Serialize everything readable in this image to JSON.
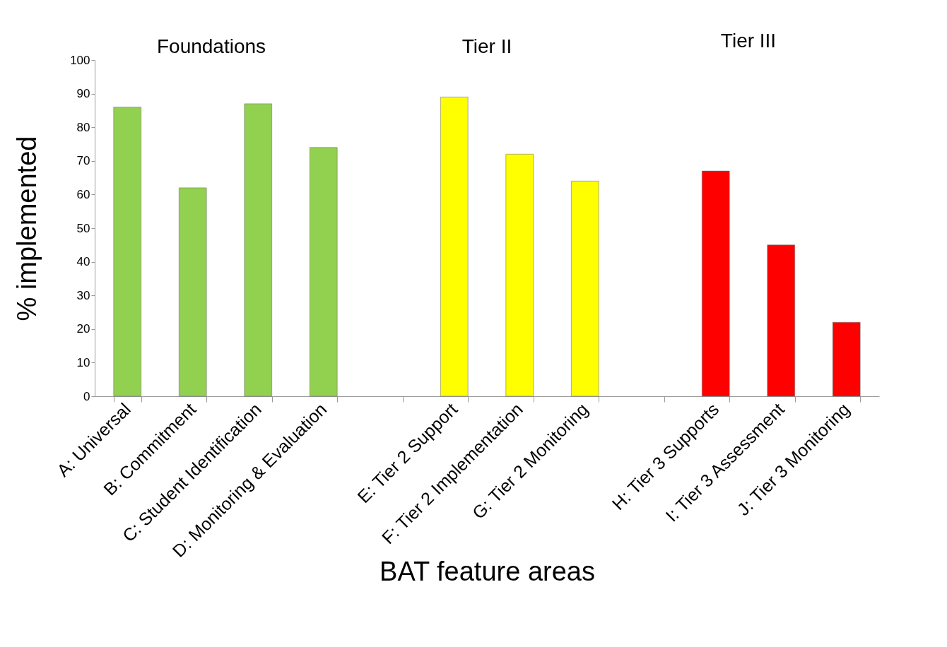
{
  "chart_data": {
    "type": "bar",
    "xlabel": "BAT feature areas",
    "ylabel": "% implemented",
    "categories": [
      "A: Universal",
      "B: Commitment",
      "C: Student Identification",
      "D: Monitoring & Evaluation",
      null,
      "E: Tier 2 Support",
      "F: Tier 2 Implementation",
      "G: Tier 2 Monitoring",
      null,
      "H: Tier 3 Supports",
      "I: Tier 3 Assessment",
      "J: Tier 3 Monitoring"
    ],
    "values": [
      86,
      62,
      87,
      74,
      null,
      89,
      72,
      64,
      null,
      67,
      45,
      22
    ],
    "colors": [
      "#92d050",
      "#92d050",
      "#92d050",
      "#92d050",
      null,
      "#ffff00",
      "#ffff00",
      "#ffff00",
      null,
      "#ff0000",
      "#ff0000",
      "#ff0000"
    ],
    "ylim": [
      0,
      100
    ],
    "yticks": [
      0,
      10,
      20,
      30,
      40,
      50,
      60,
      70,
      80,
      90,
      100
    ],
    "annotations": [
      "Foundations",
      "Tier II",
      "Tier III"
    ]
  }
}
